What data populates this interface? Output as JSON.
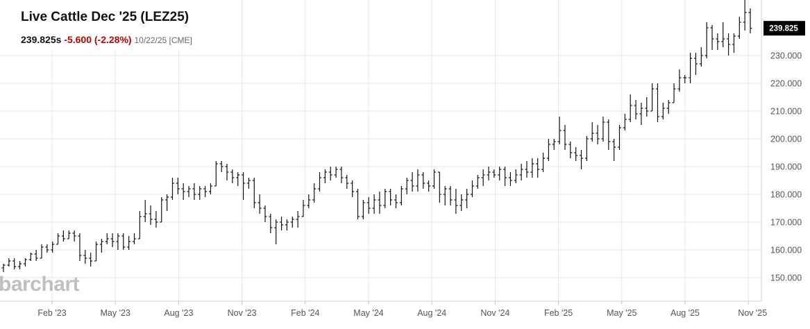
{
  "header": {
    "title": "Live Cattle Dec '25 (LEZ25)",
    "price": "239.825s",
    "change": "-5.600 (-2.28%)",
    "date_exchange": "10/22/25 [CME]"
  },
  "watermark": "barchart",
  "chart_data": {
    "type": "ohlc",
    "title": "Live Cattle Dec '25 (LEZ25)",
    "x_tick_labels": [
      "Feb '23",
      "May '23",
      "Aug '23",
      "Nov '23",
      "Feb '24",
      "May '24",
      "Aug '24",
      "Nov '24",
      "Feb '25",
      "May '25",
      "Aug '25",
      "Nov '25"
    ],
    "y_tick_labels": [
      "150.000",
      "160.000",
      "170.000",
      "180.000",
      "190.000",
      "200.000",
      "210.000",
      "220.000",
      "230.000"
    ],
    "ylim": [
      141.5,
      250.0
    ],
    "last_price_label": "239.825",
    "grid": true,
    "series": [
      {
        "interval": "weekly",
        "bars": [
          [
            153.5,
            155,
            152,
            154.5
          ],
          [
            154.5,
            157,
            154,
            156
          ],
          [
            156,
            157,
            153,
            154
          ],
          [
            154,
            156,
            153,
            155
          ],
          [
            155,
            157,
            154,
            156.5
          ],
          [
            156.5,
            159,
            156,
            158.5
          ],
          [
            158.5,
            160,
            156,
            157
          ],
          [
            157,
            162,
            157,
            161
          ],
          [
            161,
            162,
            159,
            160
          ],
          [
            160,
            163,
            159,
            162
          ],
          [
            162,
            166,
            162,
            165
          ],
          [
            165,
            167,
            163,
            164
          ],
          [
            164,
            167,
            164,
            166
          ],
          [
            166,
            167,
            163,
            165
          ],
          [
            165,
            166,
            156,
            158
          ],
          [
            158,
            160,
            155,
            157
          ],
          [
            157,
            159,
            154,
            156
          ],
          [
            156,
            163,
            156,
            162
          ],
          [
            162,
            164,
            159,
            163
          ],
          [
            163,
            166,
            162,
            164
          ],
          [
            164,
            166,
            161,
            163
          ],
          [
            163,
            166,
            160,
            165
          ],
          [
            165,
            166,
            160,
            161
          ],
          [
            161,
            165,
            160,
            163
          ],
          [
            163,
            166,
            162,
            164
          ],
          [
            164,
            174,
            164,
            172
          ],
          [
            172,
            178,
            170,
            173
          ],
          [
            173,
            176,
            169,
            171
          ],
          [
            171,
            174,
            168,
            170
          ],
          [
            170,
            179,
            170,
            178
          ],
          [
            178,
            180,
            174,
            179
          ],
          [
            179,
            186,
            178,
            184
          ],
          [
            184,
            186,
            180,
            182
          ],
          [
            182,
            184,
            178,
            181
          ],
          [
            181,
            183,
            179,
            182
          ],
          [
            182,
            184,
            178,
            180
          ],
          [
            180,
            183,
            178,
            182
          ],
          [
            182,
            183,
            179,
            181
          ],
          [
            181,
            184,
            180,
            183
          ],
          [
            183,
            192,
            183,
            191
          ],
          [
            191,
            192,
            188,
            190
          ],
          [
            190,
            191,
            185,
            188
          ],
          [
            188,
            189,
            184,
            186
          ],
          [
            186,
            188,
            183,
            187
          ],
          [
            187,
            188,
            178,
            184
          ],
          [
            184,
            186,
            182,
            185
          ],
          [
            185,
            186,
            175,
            177
          ],
          [
            177,
            180,
            173,
            175
          ],
          [
            175,
            176,
            170,
            172
          ],
          [
            172,
            173,
            166,
            168
          ],
          [
            168,
            171,
            162,
            170
          ],
          [
            170,
            172,
            167,
            169
          ],
          [
            169,
            171,
            167,
            170
          ],
          [
            170,
            172,
            168,
            171
          ],
          [
            171,
            174,
            168,
            172
          ],
          [
            172,
            178,
            172,
            176
          ],
          [
            176,
            180,
            175,
            178
          ],
          [
            178,
            184,
            177,
            182
          ],
          [
            182,
            188,
            181,
            186
          ],
          [
            186,
            189,
            184,
            188
          ],
          [
            188,
            190,
            185,
            187
          ],
          [
            187,
            190,
            186,
            189
          ],
          [
            189,
            190,
            184,
            186
          ],
          [
            186,
            187,
            182,
            184
          ],
          [
            184,
            185,
            179,
            181
          ],
          [
            181,
            182,
            171,
            172
          ],
          [
            172,
            178,
            171,
            177
          ],
          [
            177,
            179,
            173,
            175
          ],
          [
            175,
            180,
            173,
            178
          ],
          [
            178,
            181,
            173,
            176
          ],
          [
            176,
            182,
            175,
            181
          ],
          [
            181,
            182,
            176,
            178
          ],
          [
            178,
            180,
            175,
            177
          ],
          [
            177,
            183,
            176,
            182
          ],
          [
            182,
            186,
            180,
            185
          ],
          [
            185,
            188,
            181,
            183
          ],
          [
            183,
            189,
            181,
            187
          ],
          [
            187,
            188,
            182,
            184
          ],
          [
            184,
            185,
            181,
            183
          ],
          [
            183,
            189,
            182,
            188
          ],
          [
            188,
            188,
            177,
            180
          ],
          [
            180,
            183,
            176,
            182
          ],
          [
            182,
            183,
            176,
            178
          ],
          [
            178,
            182,
            173,
            176
          ],
          [
            176,
            180,
            174,
            178
          ],
          [
            178,
            182,
            175,
            180
          ],
          [
            180,
            185,
            179,
            183
          ],
          [
            183,
            187,
            182,
            186
          ],
          [
            186,
            189,
            183,
            187
          ],
          [
            187,
            190,
            185,
            188
          ],
          [
            188,
            189,
            186,
            187
          ],
          [
            187,
            190,
            185,
            189
          ],
          [
            189,
            190,
            183,
            186
          ],
          [
            186,
            188,
            183,
            185
          ],
          [
            185,
            189,
            184,
            187
          ],
          [
            187,
            191,
            185,
            189
          ],
          [
            189,
            192,
            186,
            188
          ],
          [
            188,
            193,
            186,
            191
          ],
          [
            191,
            193,
            186,
            189
          ],
          [
            189,
            195,
            188,
            193
          ],
          [
            193,
            200,
            192,
            198
          ],
          [
            198,
            200,
            196,
            199
          ],
          [
            199,
            208,
            198,
            203
          ],
          [
            203,
            205,
            196,
            198
          ],
          [
            198,
            199,
            193,
            195
          ],
          [
            195,
            197,
            192,
            194
          ],
          [
            194,
            196,
            189,
            193
          ],
          [
            193,
            201,
            192,
            200
          ],
          [
            200,
            206,
            199,
            202
          ],
          [
            202,
            205,
            198,
            200
          ],
          [
            200,
            208,
            199,
            206
          ],
          [
            206,
            207,
            196,
            199
          ],
          [
            199,
            200,
            192,
            197
          ],
          [
            197,
            205,
            196,
            204
          ],
          [
            204,
            209,
            203,
            207
          ],
          [
            207,
            216,
            206,
            212
          ],
          [
            212,
            214,
            207,
            209
          ],
          [
            209,
            213,
            205,
            211
          ],
          [
            211,
            215,
            208,
            210
          ],
          [
            210,
            220,
            210,
            218
          ],
          [
            218,
            220,
            206,
            208
          ],
          [
            208,
            213,
            207,
            211
          ],
          [
            211,
            214,
            209,
            213
          ],
          [
            213,
            220,
            213,
            218
          ],
          [
            218,
            225,
            217,
            222
          ],
          [
            222,
            223,
            220,
            222
          ],
          [
            222,
            231,
            220,
            229
          ],
          [
            229,
            231,
            223,
            227
          ],
          [
            227,
            233,
            226,
            230
          ],
          [
            230,
            242,
            229,
            240
          ],
          [
            240,
            241,
            232,
            236
          ],
          [
            236,
            238,
            232,
            235
          ],
          [
            235,
            242,
            233,
            236
          ],
          [
            236,
            238,
            230,
            234
          ],
          [
            234,
            238,
            231,
            237
          ],
          [
            237,
            244,
            236,
            242
          ],
          [
            242,
            250,
            239,
            245.5
          ],
          [
            245.5,
            247,
            238,
            239.825
          ]
        ]
      }
    ]
  }
}
